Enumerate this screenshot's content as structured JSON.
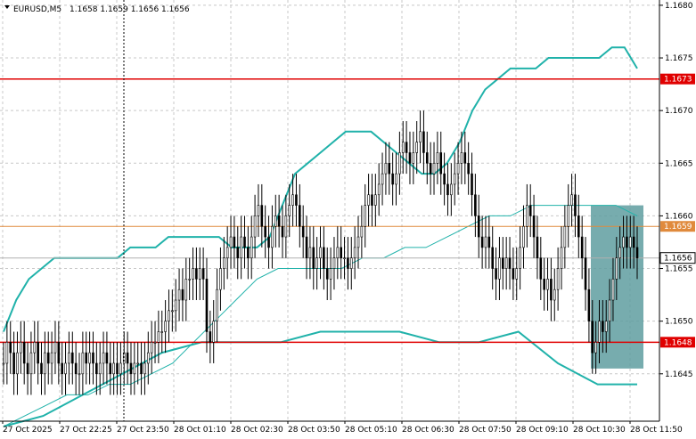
{
  "header": {
    "symbol": "EURUSD,M5",
    "ohlc": "1.1658 1.1659 1.1656 1.1656"
  },
  "colors": {
    "background": "#ffffff",
    "grid": "#c8c8c8",
    "candle": "#000000",
    "band": "#20b2aa",
    "middle_band": "#20b2aa",
    "level_line": "#e00000",
    "bid_line": "#e08a3c",
    "highlight_box": "#5f9ea0",
    "label_red_bg": "#e00000",
    "label_red_text": "#ffffff"
  },
  "chart_data": {
    "type": "candlestick",
    "symbol": "EURUSD",
    "timeframe": "M5",
    "price_axis": {
      "min": 1.16405,
      "max": 1.16805,
      "ticks": [
        "1.1680",
        "1.1675",
        "1.1670",
        "1.1665",
        "1.1660",
        "1.1655",
        "1.1650",
        "1.1645"
      ]
    },
    "time_axis": {
      "ticks": [
        "27 Oct 2025",
        "27 Oct 22:25",
        "27 Oct 23:50",
        "28 Oct 01:10",
        "28 Oct 02:30",
        "28 Oct 03:50",
        "28 Oct 05:10",
        "28 Oct 06:30",
        "28 Oct 07:50",
        "28 Oct 09:10",
        "28 Oct 10:30",
        "28 Oct 11:50"
      ]
    },
    "horizontal_levels": [
      {
        "price": 1.1673,
        "label": "1.1673",
        "color": "#e00000"
      },
      {
        "price": 1.1648,
        "label": "1.1648",
        "color": "#e00000"
      }
    ],
    "bid_line": {
      "price": 1.1659,
      "label": "1.1659"
    },
    "current_price": {
      "price": 1.1656,
      "label": "1.1656"
    },
    "candles_close": [
      1.1646,
      1.1648,
      1.1647,
      1.1645,
      1.1647,
      1.1648,
      1.1646,
      1.1645,
      1.1647,
      1.1648,
      1.1646,
      1.1645,
      1.1647,
      1.1646,
      1.1647,
      1.1648,
      1.1646,
      1.1645,
      1.1646,
      1.1647,
      1.1646,
      1.1645,
      1.1645,
      1.1647,
      1.1646,
      1.1647,
      1.1646,
      1.1645,
      1.1646,
      1.1647,
      1.1646,
      1.1645,
      1.1646,
      1.1645,
      1.1646,
      1.1647,
      1.1646,
      1.1645,
      1.1646,
      1.1646,
      1.1645,
      1.1646,
      1.1647,
      1.1648,
      1.1648,
      1.1649,
      1.1649,
      1.165,
      1.1651,
      1.1651,
      1.1652,
      1.1653,
      1.1652,
      1.1654,
      1.1654,
      1.1655,
      1.1654,
      1.1655,
      1.1654,
      1.1649,
      1.1648,
      1.165,
      1.1653,
      1.1655,
      1.1656,
      1.1657,
      1.1658,
      1.1657,
      1.1656,
      1.1658,
      1.1657,
      1.1656,
      1.1658,
      1.166,
      1.1661,
      1.1659,
      1.1658,
      1.1657,
      1.1659,
      1.166,
      1.1659,
      1.1658,
      1.166,
      1.1661,
      1.1662,
      1.1661,
      1.1659,
      1.1658,
      1.1656,
      1.1657,
      1.1655,
      1.1656,
      1.1657,
      1.1655,
      1.1654,
      1.1655,
      1.1656,
      1.1657,
      1.1656,
      1.1656,
      1.1655,
      1.1656,
      1.1657,
      1.1658,
      1.1659,
      1.1661,
      1.1662,
      1.1661,
      1.1662,
      1.1663,
      1.1664,
      1.1665,
      1.1664,
      1.1663,
      1.1664,
      1.1666,
      1.1667,
      1.1666,
      1.1665,
      1.1666,
      1.1667,
      1.1668,
      1.1666,
      1.1665,
      1.1664,
      1.1665,
      1.1666,
      1.1664,
      1.1663,
      1.1662,
      1.1663,
      1.1664,
      1.1665,
      1.1666,
      1.1665,
      1.1664,
      1.1662,
      1.166,
      1.1658,
      1.1657,
      1.1658,
      1.1657,
      1.1655,
      1.1654,
      1.1656,
      1.1655,
      1.1656,
      1.1655,
      1.1654,
      1.1655,
      1.1657,
      1.1659,
      1.1661,
      1.166,
      1.1658,
      1.1656,
      1.1654,
      1.1653,
      1.1654,
      1.1652,
      1.1653,
      1.1655,
      1.1657,
      1.1659,
      1.1661,
      1.1662,
      1.166,
      1.1658,
      1.1656,
      1.1653,
      1.165,
      1.1647,
      1.1648,
      1.165,
      1.1649,
      1.165,
      1.1652,
      1.1654,
      1.1656,
      1.1657,
      1.1658,
      1.1657,
      1.1658,
      1.1657,
      1.1656
    ],
    "upper_band": [
      1.1649,
      1.1652,
      1.1654,
      1.1655,
      1.1656,
      1.1656,
      1.1656,
      1.1656,
      1.1656,
      1.1656,
      1.1657,
      1.1657,
      1.1657,
      1.1658,
      1.1658,
      1.1658,
      1.1658,
      1.1658,
      1.1657,
      1.1657,
      1.1657,
      1.1658,
      1.1661,
      1.1664,
      1.1665,
      1.1666,
      1.1667,
      1.1668,
      1.1668,
      1.1668,
      1.1667,
      1.1666,
      1.1665,
      1.1664,
      1.1664,
      1.1665,
      1.1667,
      1.167,
      1.1672,
      1.1673,
      1.1674,
      1.1674,
      1.1674,
      1.1675,
      1.1675,
      1.1675,
      1.1675,
      1.1675,
      1.1676,
      1.1676,
      1.1674
    ],
    "middle_band": [
      1.164,
      1.1641,
      1.1642,
      1.1643,
      1.1643,
      1.1644,
      1.1644,
      1.1645,
      1.1646,
      1.1648,
      1.165,
      1.1652,
      1.1654,
      1.1655,
      1.1655,
      1.1655,
      1.1655,
      1.1656,
      1.1656,
      1.1657,
      1.1657,
      1.1658,
      1.1659,
      1.166,
      1.166,
      1.1661,
      1.1661,
      1.1661,
      1.1661,
      1.1661,
      1.166
    ],
    "lower_band": [
      1.164,
      1.1641,
      1.1643,
      1.1645,
      1.1647,
      1.1648,
      1.1648,
      1.1648,
      1.1649,
      1.1649,
      1.1649,
      1.1648,
      1.1648,
      1.1649,
      1.1646,
      1.1644,
      1.1644
    ],
    "highlight_box": {
      "price_top": 1.1661,
      "price_bottom": 1.16455
    }
  }
}
